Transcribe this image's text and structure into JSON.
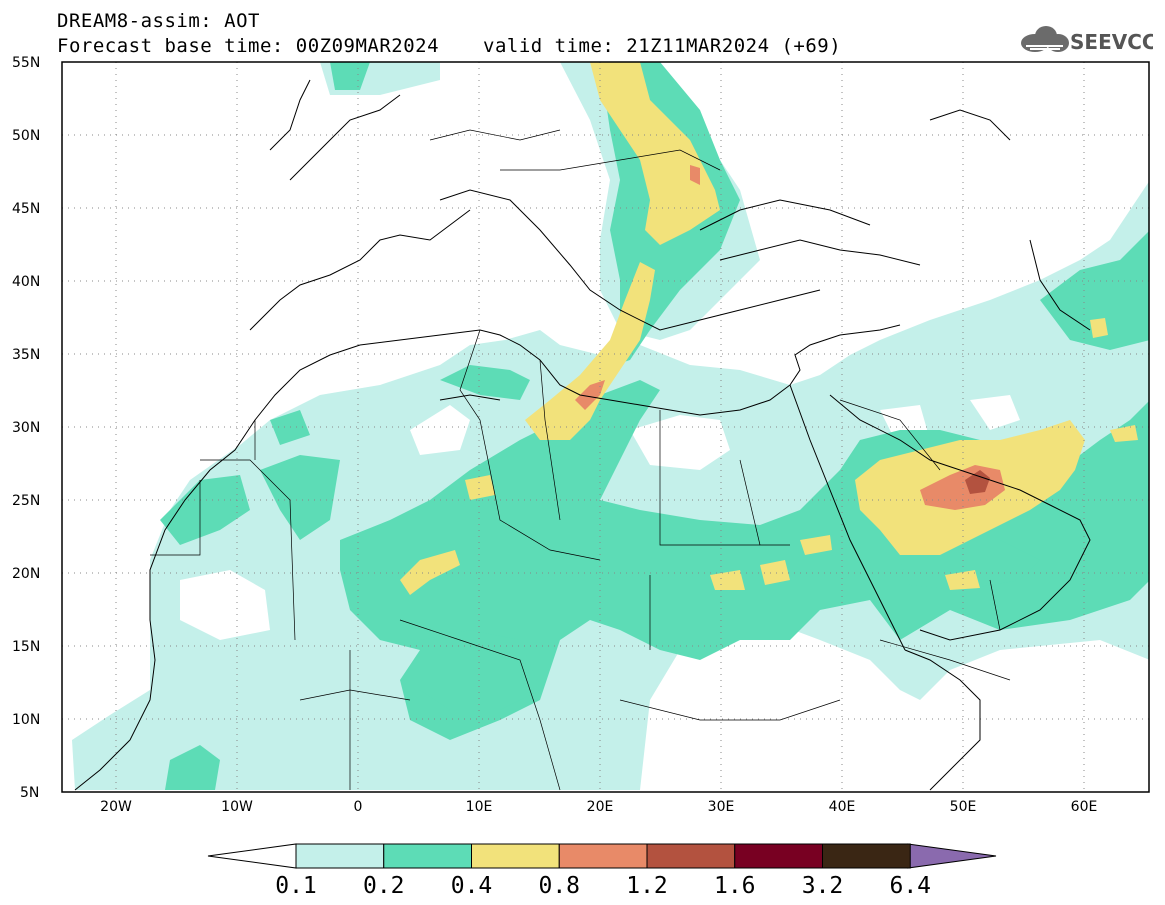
{
  "header": {
    "model": "DREAM8-assim: AOT",
    "base_time": "Forecast base time: 00Z09MAR2024",
    "valid_time": "valid time: 21Z11MAR2024 (+69)"
  },
  "logo": {
    "text": "SEEVCCC",
    "icon": "cloud-icon"
  },
  "map": {
    "lon_range": [
      -25,
      65
    ],
    "lat_range": [
      5,
      55
    ],
    "lat_ticks": [
      "55N",
      "50N",
      "45N",
      "40N",
      "35N",
      "30N",
      "25N",
      "20N",
      "15N",
      "10N",
      "5N"
    ],
    "lon_ticks": [
      "20W",
      "10W",
      "0",
      "10E",
      "20E",
      "30E",
      "40E",
      "50E",
      "60E"
    ],
    "grid": "dotted"
  },
  "legend": {
    "thresholds": [
      "0.1",
      "0.2",
      "0.4",
      "0.8",
      "1.2",
      "1.6",
      "3.2",
      "6.4"
    ],
    "colors": [
      "#c4f0ea",
      "#5ddcb6",
      "#f2e27b",
      "#e88a68",
      "#b3523f",
      "#780022",
      "#3a2614",
      "#8a6aae"
    ]
  }
}
